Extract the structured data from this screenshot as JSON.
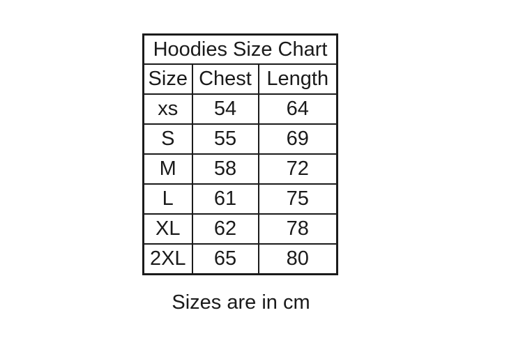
{
  "chart_data": {
    "type": "table",
    "title": "Hoodies Size Chart",
    "columns": [
      "Size",
      "Chest",
      "Length"
    ],
    "rows": [
      [
        "xs",
        54,
        64
      ],
      [
        "S",
        55,
        69
      ],
      [
        "M",
        58,
        72
      ],
      [
        "L",
        61,
        75
      ],
      [
        "XL",
        62,
        78
      ],
      [
        "2XL",
        65,
        80
      ]
    ],
    "note": "Sizes are in cm",
    "units": "cm",
    "layout": {
      "background": "#ffffff",
      "border_color": "#1b1b1b",
      "text_color": "#1a1a1a",
      "grid": "on"
    }
  }
}
